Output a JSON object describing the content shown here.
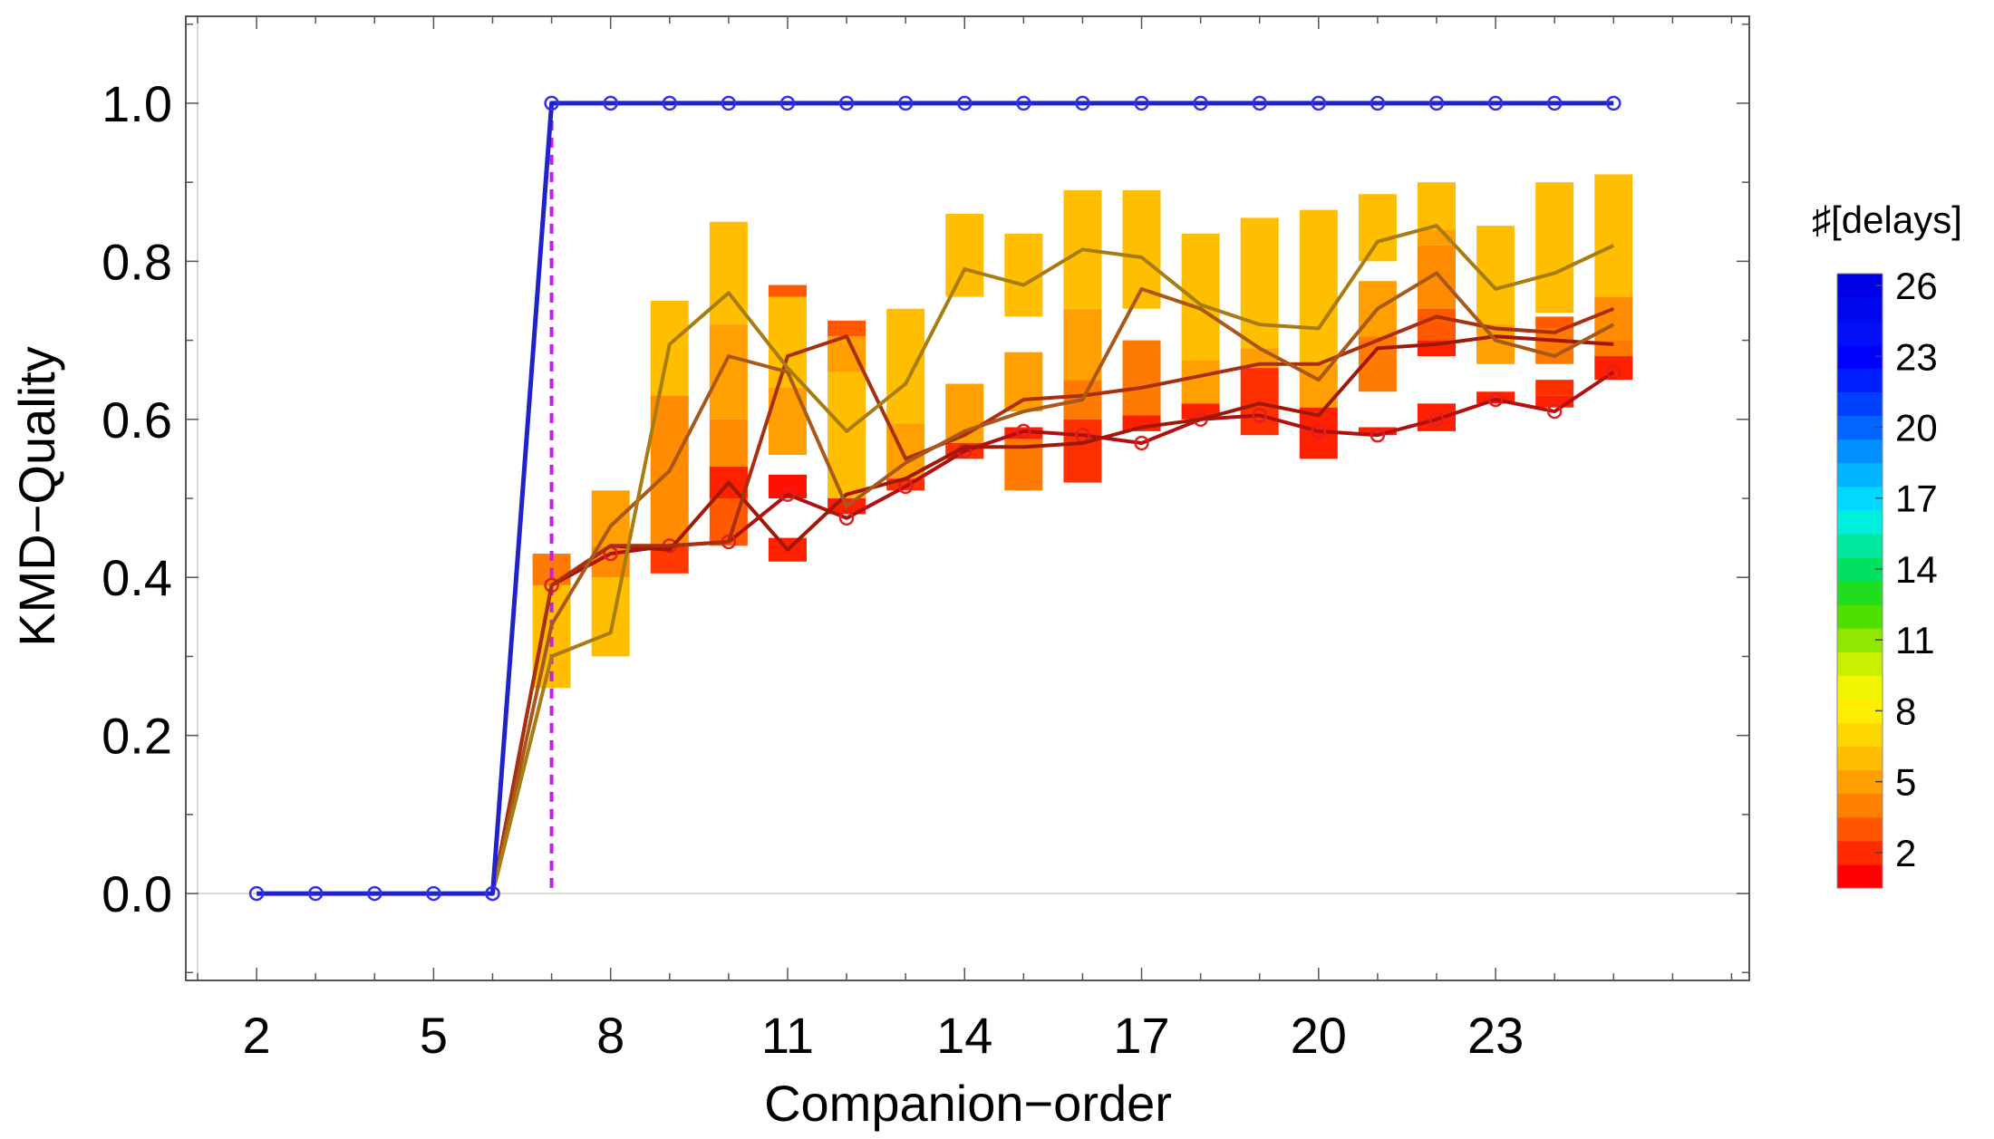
{
  "chart_data": {
    "type": "line",
    "title": "",
    "xlabel": "Companion−order",
    "ylabel": "KMD−Quality",
    "xlim": [
      0.8,
      27.3
    ],
    "ylim": [
      -0.11,
      1.11
    ],
    "x_ticks": [
      2,
      5,
      8,
      11,
      14,
      17,
      20,
      23
    ],
    "y_ticks": [
      0.0,
      0.2,
      0.4,
      0.6,
      0.8,
      1.0
    ],
    "y_tick_labels": [
      "0.0",
      "0.2",
      "0.4",
      "0.6",
      "0.8",
      "1.0"
    ],
    "reference_line": {
      "x": 7,
      "color": "#c020e8",
      "style": "dashed"
    },
    "legend": {
      "title": "♯[delays]",
      "placement": "right",
      "type": "color-scale",
      "tick_labels": [
        "26",
        "23",
        "20",
        "17",
        "14",
        "11",
        "8",
        "5",
        "2"
      ],
      "scale_colors": [
        "#ff0000",
        "#ff2a00",
        "#ff5500",
        "#ff7f00",
        "#ffa000",
        "#ffbf00",
        "#ffd700",
        "#ffee00",
        "#f0f500",
        "#c8f000",
        "#90e800",
        "#50e000",
        "#20dd20",
        "#00e060",
        "#00e8a0",
        "#00f0e0",
        "#00d8ff",
        "#00b4ff",
        "#0090ff",
        "#0066ff",
        "#0040ff",
        "#0020ff",
        "#0000ff",
        "#0010f8",
        "#0008ee",
        "#0000e8"
      ]
    },
    "series": [
      {
        "color": "#2222cc",
        "marker": "open-circle",
        "x": [
          2,
          3,
          4,
          5,
          6,
          7,
          8,
          9,
          10,
          11,
          12,
          13,
          14,
          15,
          16,
          17,
          18,
          19,
          20,
          21,
          22,
          23,
          24,
          25
        ],
        "y": [
          0,
          0,
          0,
          0,
          0,
          1,
          1,
          1,
          1,
          1,
          1,
          1,
          1,
          1,
          1,
          1,
          1,
          1,
          1,
          1,
          1,
          1,
          1,
          1
        ]
      },
      {
        "color": "#b01010",
        "marker": "open-circle",
        "x": [
          6,
          7,
          8,
          9,
          10,
          11,
          12,
          13,
          14,
          15,
          16,
          17,
          18,
          19,
          20,
          21,
          22,
          23,
          24,
          25
        ],
        "y": [
          0,
          0.39,
          0.43,
          0.44,
          0.445,
          0.505,
          0.475,
          0.515,
          0.56,
          0.585,
          0.58,
          0.57,
          0.6,
          0.605,
          0.585,
          0.58,
          0.6,
          0.625,
          0.61,
          0.66
        ]
      },
      {
        "color": "#a01808",
        "x": [
          6,
          7,
          8,
          9,
          10,
          11,
          12,
          13,
          14,
          15,
          16,
          17,
          18,
          19,
          20,
          21,
          22,
          23,
          24,
          25
        ],
        "y": [
          0,
          0.39,
          0.44,
          0.435,
          0.52,
          0.435,
          0.505,
          0.525,
          0.565,
          0.565,
          0.57,
          0.59,
          0.6,
          0.62,
          0.605,
          0.69,
          0.695,
          0.705,
          0.7,
          0.695
        ]
      },
      {
        "color": "#a83010",
        "x": [
          6,
          7,
          8,
          9,
          10,
          11,
          12,
          13,
          14,
          15,
          16,
          17,
          18,
          19,
          20,
          21,
          22,
          23,
          24,
          25
        ],
        "y": [
          0,
          0.39,
          0.44,
          0.44,
          0.445,
          0.68,
          0.705,
          0.55,
          0.58,
          0.625,
          0.63,
          0.64,
          0.655,
          0.67,
          0.67,
          0.7,
          0.73,
          0.715,
          0.71,
          0.74
        ]
      },
      {
        "color": "#a85818",
        "x": [
          6,
          7,
          8,
          9,
          10,
          11,
          12,
          13,
          14,
          15,
          16,
          17,
          18,
          19,
          20,
          21,
          22,
          23,
          24,
          25
        ],
        "y": [
          0,
          0.34,
          0.465,
          0.535,
          0.68,
          0.66,
          0.49,
          0.545,
          0.585,
          0.61,
          0.625,
          0.765,
          0.74,
          0.69,
          0.65,
          0.74,
          0.785,
          0.7,
          0.68,
          0.72
        ]
      },
      {
        "color": "#a87c10",
        "x": [
          6,
          7,
          8,
          9,
          10,
          11,
          12,
          13,
          14,
          15,
          16,
          17,
          18,
          19,
          20,
          21,
          22,
          23,
          24,
          25
        ],
        "y": [
          0,
          0.3,
          0.33,
          0.695,
          0.76,
          0.665,
          0.585,
          0.645,
          0.79,
          0.77,
          0.815,
          0.805,
          0.745,
          0.72,
          0.715,
          0.825,
          0.845,
          0.765,
          0.785,
          0.82
        ]
      }
    ],
    "range_bars": [
      {
        "x": 7,
        "segments": [
          {
            "y0": 0.39,
            "y1": 0.43,
            "color": "#ff7a00"
          },
          {
            "y0": 0.26,
            "y1": 0.39,
            "color": "#ffbf00"
          }
        ]
      },
      {
        "x": 8,
        "segments": [
          {
            "y0": 0.44,
            "y1": 0.51,
            "color": "#ffa000"
          },
          {
            "y0": 0.4,
            "y1": 0.44,
            "color": "#ff8c00"
          },
          {
            "y0": 0.3,
            "y1": 0.4,
            "color": "#ffbf00"
          }
        ]
      },
      {
        "x": 9,
        "segments": [
          {
            "y0": 0.63,
            "y1": 0.75,
            "color": "#ffbf00"
          },
          {
            "y0": 0.44,
            "y1": 0.63,
            "color": "#ff8c00"
          },
          {
            "y0": 0.405,
            "y1": 0.44,
            "color": "#ff3a00"
          }
        ]
      },
      {
        "x": 10,
        "segments": [
          {
            "y0": 0.72,
            "y1": 0.85,
            "color": "#ffbf00"
          },
          {
            "y0": 0.6,
            "y1": 0.72,
            "color": "#ffa000"
          },
          {
            "y0": 0.5,
            "y1": 0.6,
            "color": "#ff8c00"
          },
          {
            "y0": 0.44,
            "y1": 0.5,
            "color": "#ff5a00"
          },
          {
            "y0": 0.5,
            "y1": 0.54,
            "color": "#ff2000"
          }
        ]
      },
      {
        "x": 11,
        "segments": [
          {
            "y0": 0.64,
            "y1": 0.755,
            "color": "#ffbf00"
          },
          {
            "y0": 0.555,
            "y1": 0.64,
            "color": "#ffa000"
          },
          {
            "y0": 0.755,
            "y1": 0.77,
            "color": "#ff5a00"
          },
          {
            "y0": 0.42,
            "y1": 0.45,
            "color": "#ff2000"
          },
          {
            "y0": 0.5,
            "y1": 0.53,
            "color": "#ff1000"
          }
        ]
      },
      {
        "x": 12,
        "segments": [
          {
            "y0": 0.66,
            "y1": 0.705,
            "color": "#ffa000"
          },
          {
            "y0": 0.5,
            "y1": 0.66,
            "color": "#ffbf00"
          },
          {
            "y0": 0.705,
            "y1": 0.725,
            "color": "#ff5a00"
          },
          {
            "y0": 0.48,
            "y1": 0.5,
            "color": "#ff2000"
          }
        ]
      },
      {
        "x": 13,
        "segments": [
          {
            "y0": 0.595,
            "y1": 0.74,
            "color": "#ffbf00"
          },
          {
            "y0": 0.525,
            "y1": 0.595,
            "color": "#ffa000"
          },
          {
            "y0": 0.51,
            "y1": 0.525,
            "color": "#ff3000"
          }
        ]
      },
      {
        "x": 14,
        "segments": [
          {
            "y0": 0.755,
            "y1": 0.86,
            "color": "#ffbf00"
          },
          {
            "y0": 0.57,
            "y1": 0.645,
            "color": "#ffa000"
          },
          {
            "y0": 0.55,
            "y1": 0.57,
            "color": "#ff3000"
          }
        ]
      },
      {
        "x": 15,
        "segments": [
          {
            "y0": 0.73,
            "y1": 0.835,
            "color": "#ffbf00"
          },
          {
            "y0": 0.61,
            "y1": 0.685,
            "color": "#ffa000"
          },
          {
            "y0": 0.51,
            "y1": 0.575,
            "color": "#ff7a00"
          },
          {
            "y0": 0.575,
            "y1": 0.59,
            "color": "#ff2000"
          }
        ]
      },
      {
        "x": 16,
        "segments": [
          {
            "y0": 0.74,
            "y1": 0.89,
            "color": "#ffbf00"
          },
          {
            "y0": 0.65,
            "y1": 0.74,
            "color": "#ffa000"
          },
          {
            "y0": 0.6,
            "y1": 0.65,
            "color": "#ff7a00"
          },
          {
            "y0": 0.52,
            "y1": 0.6,
            "color": "#ff3000"
          }
        ]
      },
      {
        "x": 17,
        "segments": [
          {
            "y0": 0.74,
            "y1": 0.89,
            "color": "#ffbf00"
          },
          {
            "y0": 0.605,
            "y1": 0.7,
            "color": "#ff7a00"
          },
          {
            "y0": 0.585,
            "y1": 0.605,
            "color": "#ff2000"
          }
        ]
      },
      {
        "x": 18,
        "segments": [
          {
            "y0": 0.675,
            "y1": 0.835,
            "color": "#ffbf00"
          },
          {
            "y0": 0.62,
            "y1": 0.675,
            "color": "#ffa000"
          },
          {
            "y0": 0.6,
            "y1": 0.62,
            "color": "#ff2000"
          }
        ]
      },
      {
        "x": 19,
        "segments": [
          {
            "y0": 0.69,
            "y1": 0.855,
            "color": "#ffbf00"
          },
          {
            "y0": 0.665,
            "y1": 0.69,
            "color": "#ffa000"
          },
          {
            "y0": 0.58,
            "y1": 0.665,
            "color": "#ff3000"
          }
        ]
      },
      {
        "x": 20,
        "segments": [
          {
            "y0": 0.67,
            "y1": 0.865,
            "color": "#ffbf00"
          },
          {
            "y0": 0.615,
            "y1": 0.67,
            "color": "#ffa000"
          },
          {
            "y0": 0.55,
            "y1": 0.615,
            "color": "#ff2000"
          }
        ]
      },
      {
        "x": 21,
        "segments": [
          {
            "y0": 0.8,
            "y1": 0.885,
            "color": "#ffbf00"
          },
          {
            "y0": 0.705,
            "y1": 0.775,
            "color": "#ffa000"
          },
          {
            "y0": 0.635,
            "y1": 0.705,
            "color": "#ff7a00"
          },
          {
            "y0": 0.58,
            "y1": 0.59,
            "color": "#ff2000"
          }
        ]
      },
      {
        "x": 22,
        "segments": [
          {
            "y0": 0.84,
            "y1": 0.9,
            "color": "#ffbf00"
          },
          {
            "y0": 0.82,
            "y1": 0.84,
            "color": "#ffa000"
          },
          {
            "y0": 0.74,
            "y1": 0.82,
            "color": "#ff8c00"
          },
          {
            "y0": 0.7,
            "y1": 0.74,
            "color": "#ff5a00"
          },
          {
            "y0": 0.68,
            "y1": 0.7,
            "color": "#ff2000"
          },
          {
            "y0": 0.585,
            "y1": 0.62,
            "color": "#ff2000"
          }
        ]
      },
      {
        "x": 23,
        "segments": [
          {
            "y0": 0.72,
            "y1": 0.845,
            "color": "#ffbf00"
          },
          {
            "y0": 0.67,
            "y1": 0.72,
            "color": "#ffa000"
          },
          {
            "y0": 0.62,
            "y1": 0.635,
            "color": "#ff2000"
          }
        ]
      },
      {
        "x": 24,
        "segments": [
          {
            "y0": 0.735,
            "y1": 0.9,
            "color": "#ffbf00"
          },
          {
            "y0": 0.67,
            "y1": 0.715,
            "color": "#ff7a00"
          },
          {
            "y0": 0.715,
            "y1": 0.73,
            "color": "#ff5a00"
          },
          {
            "y0": 0.63,
            "y1": 0.65,
            "color": "#ff3000"
          },
          {
            "y0": 0.615,
            "y1": 0.63,
            "color": "#ff2000"
          }
        ]
      },
      {
        "x": 25,
        "segments": [
          {
            "y0": 0.755,
            "y1": 0.91,
            "color": "#ffbf00"
          },
          {
            "y0": 0.7,
            "y1": 0.755,
            "color": "#ff8c00"
          },
          {
            "y0": 0.68,
            "y1": 0.7,
            "color": "#ff7a00"
          },
          {
            "y0": 0.65,
            "y1": 0.68,
            "color": "#ff2000"
          }
        ]
      }
    ]
  }
}
